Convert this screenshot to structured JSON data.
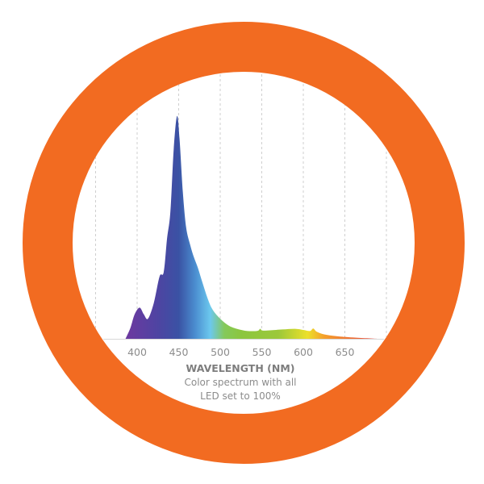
{
  "ring_color": "#f26b21",
  "chart_data": {
    "type": "area",
    "title": "",
    "xlabel": "WAVELENGTH (NM)",
    "ylabel": "",
    "caption_lines": [
      "Color spectrum with all",
      "LED set to 100%"
    ],
    "xlim": [
      350,
      700
    ],
    "ylim": [
      0,
      1
    ],
    "grid": true,
    "grid_x": [
      350,
      400,
      450,
      500,
      550,
      600,
      650,
      700
    ],
    "x_ticks": [
      "400",
      "450",
      "500",
      "550",
      "600",
      "650"
    ],
    "x": [
      386,
      392,
      397,
      403,
      408,
      413,
      420,
      427,
      432,
      436,
      440,
      444,
      448,
      451,
      455,
      459,
      464,
      468,
      473,
      478,
      485,
      491,
      500,
      510,
      520,
      533,
      545,
      548,
      551,
      560,
      575,
      590,
      600,
      608,
      612,
      616,
      625,
      640,
      660,
      690
    ],
    "y": [
      0,
      0.05,
      0.11,
      0.14,
      0.11,
      0.09,
      0.16,
      0.28,
      0.3,
      0.45,
      0.57,
      0.85,
      1.0,
      0.9,
      0.66,
      0.5,
      0.42,
      0.37,
      0.32,
      0.26,
      0.18,
      0.13,
      0.09,
      0.06,
      0.045,
      0.035,
      0.036,
      0.045,
      0.037,
      0.038,
      0.042,
      0.045,
      0.04,
      0.035,
      0.046,
      0.032,
      0.02,
      0.012,
      0.006,
      0
    ],
    "gradient": [
      {
        "nm": 390,
        "color": "#6a3aa0"
      },
      {
        "nm": 425,
        "color": "#4e44a2"
      },
      {
        "nm": 450,
        "color": "#3a52a4"
      },
      {
        "nm": 470,
        "color": "#4b8ed0"
      },
      {
        "nm": 488,
        "color": "#6cc8ee"
      },
      {
        "nm": 505,
        "color": "#84c95a"
      },
      {
        "nm": 525,
        "color": "#8cc63f"
      },
      {
        "nm": 570,
        "color": "#9cc83a"
      },
      {
        "nm": 605,
        "color": "#ece02a"
      },
      {
        "nm": 625,
        "color": "#f4a02c"
      },
      {
        "nm": 690,
        "color": "#e8403c"
      }
    ]
  }
}
